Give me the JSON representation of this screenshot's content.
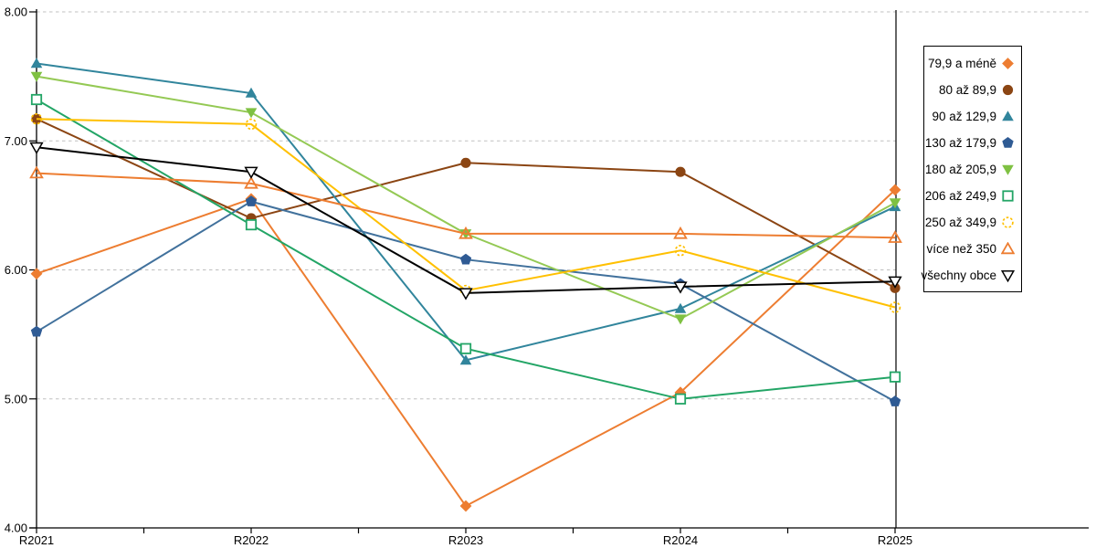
{
  "chart_data": {
    "type": "line",
    "categories": [
      "R2021",
      "R2022",
      "R2023",
      "R2024",
      "R2025"
    ],
    "series": [
      {
        "name": "79,9 a méně",
        "color": "#ED7D31",
        "marker": "diamond-filled",
        "values": [
          5.97,
          6.55,
          4.17,
          5.05,
          6.62
        ]
      },
      {
        "name": "80 až 89,9",
        "color": "#8B4513",
        "marker": "circle-filled",
        "values": [
          7.17,
          6.4,
          6.83,
          6.76,
          5.86
        ]
      },
      {
        "name": "90 až 129,9",
        "color": "#31859C",
        "marker": "triangle-up-filled",
        "values": [
          7.6,
          7.37,
          5.3,
          5.7,
          6.49
        ]
      },
      {
        "name": "130 až 179,9",
        "color": "#41719C",
        "marker_color": "#2F5B94",
        "marker": "pentagon-filled",
        "values": [
          5.52,
          6.53,
          6.08,
          5.89,
          4.98
        ]
      },
      {
        "name": "180 až 205,9",
        "color": "#94C954",
        "marker_color": "#7FC142",
        "marker": "triangle-down-filled",
        "values": [
          7.5,
          7.22,
          6.28,
          5.62,
          6.52
        ]
      },
      {
        "name": "206 až 249,9",
        "color": "#23A566",
        "marker": "square-open",
        "values": [
          7.32,
          6.35,
          5.39,
          5.0,
          5.17
        ]
      },
      {
        "name": "250 až 349,9",
        "color": "#FFC000",
        "marker": "circle-open-dashed",
        "values": [
          7.17,
          7.13,
          5.84,
          6.15,
          5.71
        ]
      },
      {
        "name": "více než 350",
        "color": "#ED7D31",
        "marker": "triangle-up-open",
        "values": [
          6.75,
          6.67,
          6.28,
          6.28,
          6.25
        ]
      },
      {
        "name": "všechny obce",
        "color": "#000000",
        "marker": "triangle-down-open",
        "values": [
          6.95,
          6.76,
          5.82,
          5.87,
          5.91
        ]
      }
    ],
    "ylim": [
      4,
      8
    ],
    "ytick_labels": [
      "8.00",
      "7.00",
      "6.00",
      "5.00",
      "4.00"
    ],
    "xtick_labels": [
      "R2021",
      "R2022",
      "R2023",
      "R2024",
      "R2025"
    ],
    "grid": "horizontal-dashed",
    "legend_position": "right"
  },
  "colors": {
    "background": "#FFFFFF",
    "gridline": "#C0C0C0",
    "axis": "#000000",
    "text": "#000000"
  }
}
